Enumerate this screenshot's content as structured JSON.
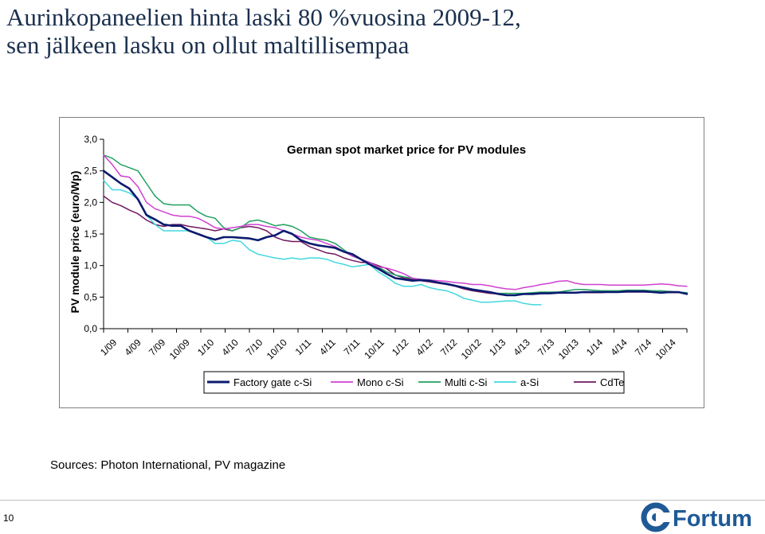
{
  "slide": {
    "title_line1": "Aurinkopaneelien hinta laski 80 %vuosina 2009-12,",
    "title_line2": "sen jälkeen lasku on ollut maltillisempaa",
    "sources": "Sources: Photon International, PV magazine",
    "page_number": "10",
    "logo_text": "Fortum",
    "colors": {
      "title": "#1a2f4d",
      "logo": "#1f5a96"
    }
  },
  "chart_data": {
    "type": "line",
    "title": "German spot market price for PV modules",
    "xlabel": "",
    "ylabel": "PV module price (euro/Wp)",
    "ylim": [
      0,
      3
    ],
    "yticks": [
      "0,0",
      "0,5",
      "1,0",
      "1,5",
      "2,0",
      "2,5",
      "3,0"
    ],
    "ytick_values": [
      0,
      0.5,
      1.0,
      1.5,
      2.0,
      2.5,
      3.0
    ],
    "xticks": [
      "1/09",
      "4/09",
      "7/09",
      "10/09",
      "1/10",
      "4/10",
      "7/10",
      "10/10",
      "1/11",
      "4/11",
      "7/11",
      "10/11",
      "1/12",
      "4/12",
      "7/12",
      "10/12",
      "1/13",
      "4/13",
      "7/13",
      "10/13",
      "1/14",
      "4/14",
      "7/14",
      "10/14"
    ],
    "grid": false,
    "legend_position": "bottom",
    "series": [
      {
        "name": "Factory gate c-Si",
        "color": "#0a1a6e",
        "width": 2.6,
        "values": [
          2.5,
          2.4,
          2.3,
          2.22,
          2.05,
          1.8,
          1.73,
          1.65,
          1.63,
          1.63,
          1.55,
          1.5,
          1.45,
          1.41,
          1.45,
          1.45,
          1.44,
          1.43,
          1.4,
          1.45,
          1.48,
          1.55,
          1.5,
          1.4,
          1.35,
          1.32,
          1.3,
          1.28,
          1.22,
          1.18,
          1.1,
          1.02,
          0.95,
          0.87,
          0.8,
          0.78,
          0.76,
          0.77,
          0.76,
          0.73,
          0.71,
          0.68,
          0.65,
          0.62,
          0.6,
          0.58,
          0.55,
          0.53,
          0.53,
          0.55,
          0.55,
          0.56,
          0.56,
          0.57,
          0.57,
          0.57,
          0.58,
          0.58,
          0.58,
          0.58,
          0.58,
          0.59,
          0.59,
          0.59,
          0.58,
          0.57,
          0.58,
          0.58,
          0.55
        ]
      },
      {
        "name": "Mono c-Si",
        "color": "#d040d0",
        "width": 1.5,
        "values": [
          2.75,
          2.6,
          2.42,
          2.4,
          2.25,
          2.0,
          1.9,
          1.85,
          1.8,
          1.78,
          1.78,
          1.75,
          1.68,
          1.6,
          1.58,
          1.6,
          1.62,
          1.65,
          1.65,
          1.62,
          1.6,
          1.55,
          1.5,
          1.45,
          1.42,
          1.4,
          1.35,
          1.3,
          1.22,
          1.15,
          1.1,
          1.05,
          0.98,
          0.96,
          0.92,
          0.87,
          0.8,
          0.78,
          0.77,
          0.76,
          0.75,
          0.73,
          0.72,
          0.7,
          0.7,
          0.68,
          0.65,
          0.63,
          0.62,
          0.65,
          0.67,
          0.7,
          0.72,
          0.75,
          0.76,
          0.72,
          0.7,
          0.7,
          0.7,
          0.69,
          0.69,
          0.69,
          0.69,
          0.69,
          0.7,
          0.71,
          0.7,
          0.68,
          0.67
        ]
      },
      {
        "name": "Multi c-Si",
        "color": "#20a060",
        "width": 1.5,
        "values": [
          2.75,
          2.7,
          2.6,
          2.55,
          2.5,
          2.3,
          2.1,
          1.98,
          1.96,
          1.96,
          1.96,
          1.85,
          1.78,
          1.75,
          1.6,
          1.55,
          1.6,
          1.7,
          1.72,
          1.68,
          1.63,
          1.65,
          1.62,
          1.55,
          1.45,
          1.42,
          1.4,
          1.35,
          1.25,
          1.15,
          1.1,
          1.05,
          0.98,
          0.9,
          0.85,
          0.82,
          0.8,
          0.78,
          0.75,
          0.73,
          0.7,
          0.68,
          0.65,
          0.62,
          0.6,
          0.58,
          0.56,
          0.56,
          0.56,
          0.56,
          0.57,
          0.58,
          0.58,
          0.58,
          0.6,
          0.62,
          0.62,
          0.61,
          0.6,
          0.6,
          0.6,
          0.61,
          0.61,
          0.61,
          0.6,
          0.6,
          0.59,
          0.58,
          0.57
        ]
      },
      {
        "name": "a-Si",
        "color": "#40d8e0",
        "width": 1.5,
        "values": [
          2.35,
          2.2,
          2.2,
          2.15,
          2.05,
          1.8,
          1.65,
          1.55,
          1.55,
          1.55,
          1.55,
          1.5,
          1.45,
          1.35,
          1.35,
          1.4,
          1.38,
          1.25,
          1.18,
          1.15,
          1.12,
          1.1,
          1.12,
          1.1,
          1.12,
          1.12,
          1.1,
          1.05,
          1.02,
          0.98,
          1.0,
          1.02,
          0.9,
          0.82,
          0.72,
          0.67,
          0.67,
          0.7,
          0.65,
          0.62,
          0.6,
          0.55,
          0.48,
          0.45,
          0.42,
          0.42,
          0.43,
          0.44,
          0.44,
          0.4,
          0.38,
          0.38
        ]
      },
      {
        "name": "CdTe",
        "color": "#701860",
        "width": 1.5,
        "values": [
          2.1,
          2.0,
          1.95,
          1.88,
          1.82,
          1.72,
          1.65,
          1.62,
          1.65,
          1.65,
          1.62,
          1.6,
          1.58,
          1.55,
          1.58,
          1.55,
          1.6,
          1.62,
          1.6,
          1.55,
          1.45,
          1.4,
          1.38,
          1.38,
          1.3,
          1.25,
          1.2,
          1.18,
          1.12,
          1.08,
          1.05,
          1.05,
          1.0,
          0.95,
          0.85,
          0.8,
          0.78,
          0.76,
          0.74,
          0.72,
          0.7,
          0.67,
          0.63,
          0.6,
          0.58,
          0.56,
          0.55,
          0.53,
          0.53,
          0.55,
          0.56,
          0.56,
          0.56,
          0.57,
          0.57,
          0.57,
          0.57,
          0.57,
          0.57,
          0.58,
          0.58,
          0.58,
          0.58,
          0.58,
          0.58,
          0.58,
          0.57,
          0.57,
          0.57
        ]
      }
    ]
  }
}
